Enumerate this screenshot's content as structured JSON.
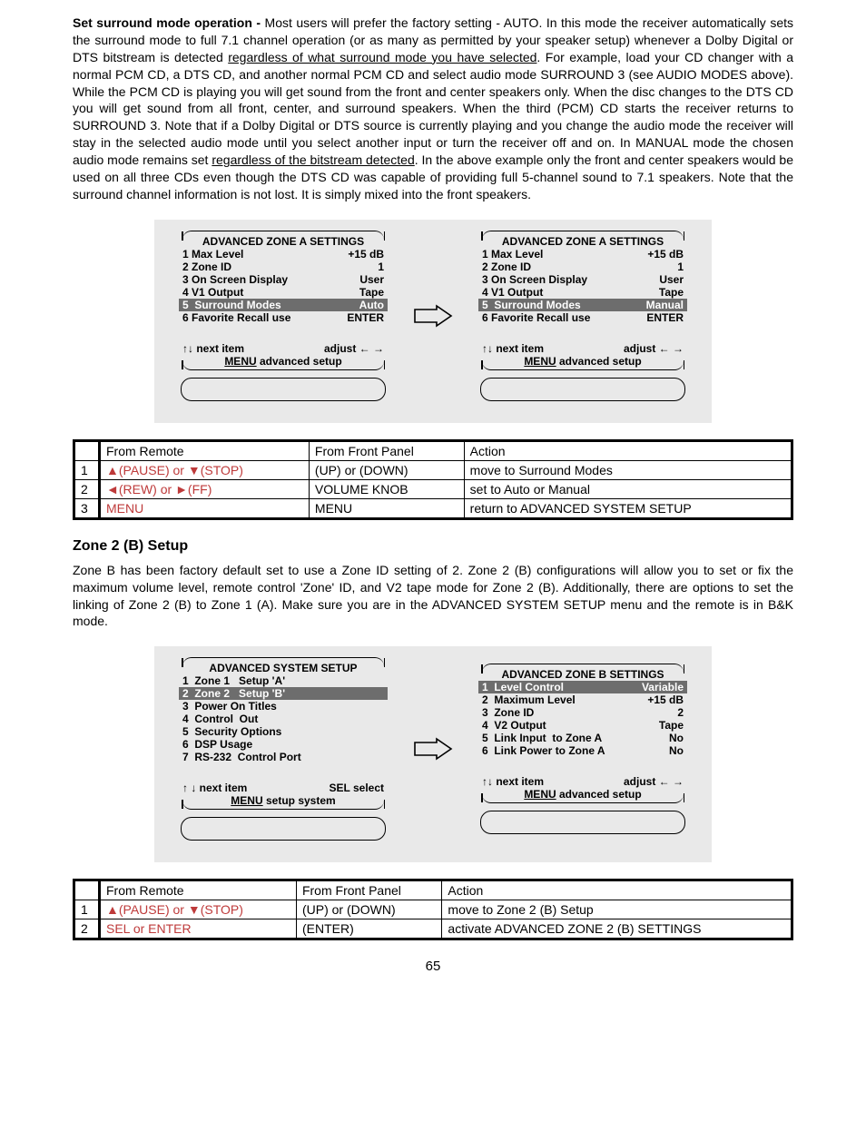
{
  "intro_bold": "Set surround mode operation - ",
  "intro_part1": "Most users will prefer the factory setting - AUTO. In this mode the receiver automatically sets the surround mode to full 7.1 channel operation (or as many as permitted by your speaker setup) whenever a Dolby Digital or DTS bitstream is detected ",
  "intro_u1": "regardless of what surround mode you have selected",
  "intro_part2": ". For example, load your CD changer with a normal PCM CD, a DTS CD, and another normal PCM CD and select audio mode SURROUND 3 (see AUDIO MODES above). While the PCM CD is playing you will get sound from the front and center speakers only. When the disc changes to the DTS CD you will get sound from all front, center, and surround speakers. When the third (PCM) CD starts the receiver returns to SURROUND 3. Note that if a Dolby Digital or DTS source is currently playing and you change the audio mode the receiver will stay in the selected audio mode until you select another input or turn the receiver off and on. In MANUAL mode the chosen audio mode remains set ",
  "intro_u2": "regardless of the bitstream detected",
  "intro_part3": ". In the above example only the front and center speakers would be used on all three CDs even though the DTS CD was capable of providing full 5-channel sound to 7.1 speakers. Note that the surround channel information is not lost. It is simply mixed into the front speakers.",
  "screenA": {
    "title": "ADVANCED ZONE A SETTINGS",
    "rows": [
      {
        "l": "1 Max Level",
        "r": "+15 dB",
        "hl": false
      },
      {
        "l": "2 Zone ID",
        "r": "1",
        "hl": false
      },
      {
        "l": "3 On Screen Display",
        "r": "User",
        "hl": false
      },
      {
        "l": "4 V1 Output",
        "r": "Tape",
        "hl": false
      },
      {
        "l": "5  Surround Modes",
        "r": "Auto",
        "hl": true
      },
      {
        "l": "6 Favorite Recall use",
        "r": "ENTER",
        "hl": false
      }
    ],
    "nav_l": "↑↓    next item",
    "nav_r": "adjust ← →",
    "menu_l": "MENU",
    "menu_r": "advanced setup"
  },
  "screenB": {
    "title": "ADVANCED ZONE A SETTINGS",
    "rows": [
      {
        "l": "1 Max Level",
        "r": "+15 dB",
        "hl": false
      },
      {
        "l": "2 Zone ID",
        "r": "1",
        "hl": false
      },
      {
        "l": "3 On Screen Display",
        "r": "User",
        "hl": false
      },
      {
        "l": "4 V1 Output",
        "r": "Tape",
        "hl": false
      },
      {
        "l": "5  Surround Modes",
        "r": "Manual",
        "hl": true
      },
      {
        "l": "6 Favorite Recall use",
        "r": "ENTER",
        "hl": false
      }
    ],
    "nav_l": "↑↓    next item",
    "nav_r": "adjust ← →",
    "menu_l": "MENU",
    "menu_r": "advanced setup"
  },
  "table1": {
    "headers": [
      "",
      "From Remote",
      "From Front Panel",
      "Action"
    ],
    "rows": [
      [
        "1",
        "▲(PAUSE) or ▼(STOP)",
        "(UP) or (DOWN)",
        "move to Surround Modes"
      ],
      [
        "2",
        "◄(REW) or ►(FF)",
        "VOLUME KNOB",
        "set to Auto or Manual"
      ],
      [
        "3",
        "MENU",
        "MENU",
        "return to ADVANCED SYSTEM SETUP"
      ]
    ]
  },
  "zone2_heading": "Zone 2 (B) Setup",
  "zone2_para": "Zone B has been factory default set to use a Zone ID setting of 2. Zone 2 (B) configurations will allow you to set or fix the maximum volume level, remote control 'Zone' ID, and V2 tape mode for Zone 2 (B). Additionally, there are options to set the linking of Zone 2 (B) to Zone 1 (A). Make sure you are in the ADVANCED SYSTEM SETUP menu and the remote is in B&K mode.",
  "screenC": {
    "title": "ADVANCED SYSTEM SETUP",
    "rows": [
      {
        "l": "1  Zone 1   Setup 'A'",
        "r": "",
        "hl": false
      },
      {
        "l": "2  Zone 2   Setup 'B'",
        "r": "",
        "hl": true
      },
      {
        "l": "3  Power On Titles",
        "r": "",
        "hl": false
      },
      {
        "l": "4  Control  Out",
        "r": "",
        "hl": false
      },
      {
        "l": "5  Security Options",
        "r": "",
        "hl": false
      },
      {
        "l": "6  DSP Usage",
        "r": "",
        "hl": false
      },
      {
        "l": "7  RS-232  Control Port",
        "r": "",
        "hl": false
      }
    ],
    "nav_l": "↑ ↓    next item",
    "nav_r": "SEL  select",
    "menu_l": "MENU",
    "menu_r": "setup system"
  },
  "screenD": {
    "title": "ADVANCED ZONE B SETTINGS",
    "rows": [
      {
        "l": "1  Level Control",
        "r": "Variable",
        "hl": true
      },
      {
        "l": "2  Maximum Level",
        "r": "+15 dB",
        "hl": false
      },
      {
        "l": "3  Zone ID",
        "r": "2",
        "hl": false
      },
      {
        "l": "4  V2 Output",
        "r": "Tape",
        "hl": false
      },
      {
        "l": "5  Link Input  to Zone A",
        "r": "No",
        "hl": false
      },
      {
        "l": "6  Link Power to Zone A",
        "r": "No",
        "hl": false
      }
    ],
    "nav_l": "↑↓ next item",
    "nav_r": "adjust  ← →",
    "menu_l": "MENU",
    "menu_r": "advanced setup"
  },
  "table2": {
    "headers": [
      "",
      "From Remote",
      "From Front Panel",
      "Action"
    ],
    "rows": [
      [
        "1",
        "▲(PAUSE) or ▼(STOP)",
        "(UP) or (DOWN)",
        "move to Zone 2 (B) Setup"
      ],
      [
        "2",
        "SEL or ENTER",
        "(ENTER)",
        "activate ADVANCED ZONE 2 (B) SETTINGS"
      ]
    ]
  },
  "pagenum": "65"
}
